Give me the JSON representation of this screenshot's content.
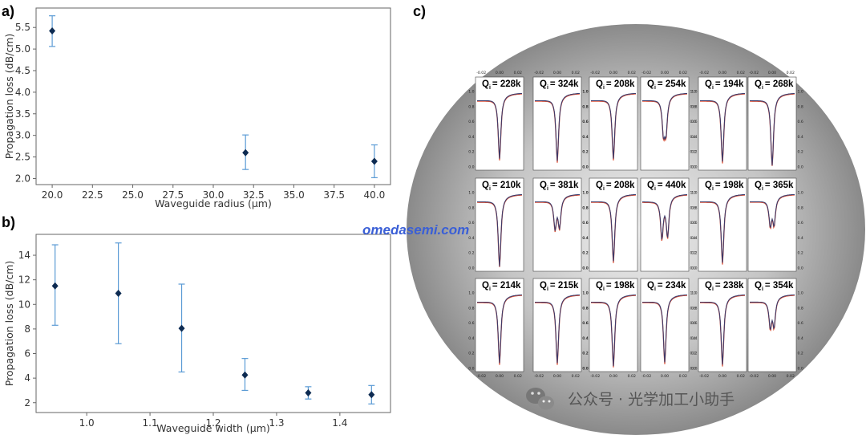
{
  "panels": {
    "a": "a)",
    "b": "b)",
    "c": "c)"
  },
  "chart_data": [
    {
      "type": "scatter",
      "panel": "a)",
      "xlabel": "Waveguide radius (μm)",
      "ylabel": "Propagation loss (dB/cm)",
      "xlim": [
        19.0,
        41.0
      ],
      "ylim": [
        1.86,
        5.95
      ],
      "xticks": [
        "20.0",
        "22.5",
        "25.0",
        "27.5",
        "30.0",
        "32.5",
        "35.0",
        "37.5",
        "40.0"
      ],
      "yticks": [
        "2.0",
        "2.5",
        "3.0",
        "3.5",
        "4.0",
        "4.5",
        "5.0",
        "5.5"
      ],
      "points": [
        {
          "x": 20,
          "y": 5.42,
          "err_low": 5.06,
          "err_high": 5.77
        },
        {
          "x": 32,
          "y": 2.6,
          "err_low": 2.21,
          "err_high": 3.01
        },
        {
          "x": 40,
          "y": 2.4,
          "err_low": 2.02,
          "err_high": 2.78
        }
      ],
      "marker_color": "#0d2b52",
      "errorbar_color": "#5b9bd5"
    },
    {
      "type": "scatter",
      "panel": "b)",
      "xlabel": "Waveguide width (μm)",
      "ylabel": "Propagation loss (dB/cm)",
      "xlim": [
        0.92,
        1.48
      ],
      "ylim": [
        1.2,
        15.7
      ],
      "xticks": [
        "1.0",
        "1.1",
        "1.2",
        "1.3",
        "1.4"
      ],
      "yticks": [
        "2",
        "4",
        "6",
        "8",
        "10",
        "12",
        "14"
      ],
      "points": [
        {
          "x": 0.95,
          "y": 11.5,
          "err_low": 8.3,
          "err_high": 14.85
        },
        {
          "x": 1.05,
          "y": 10.9,
          "err_low": 6.8,
          "err_high": 15.0
        },
        {
          "x": 1.15,
          "y": 8.05,
          "err_low": 4.5,
          "err_high": 11.65
        },
        {
          "x": 1.25,
          "y": 4.25,
          "err_low": 3.0,
          "err_high": 5.6
        },
        {
          "x": 1.35,
          "y": 2.8,
          "err_low": 2.3,
          "err_high": 3.3
        },
        {
          "x": 1.45,
          "y": 2.65,
          "err_low": 1.9,
          "err_high": 3.4
        }
      ],
      "marker_color": "#0d2b52",
      "errorbar_color": "#5b9bd5"
    },
    {
      "type": "line",
      "panel": "c)",
      "subplot_x_ticks": [
        "-0.02",
        "0.00",
        "0.02"
      ],
      "subplot_y_ticks": [
        "0.0",
        "0.2",
        "0.4",
        "0.6",
        "0.8",
        "1.0"
      ],
      "resonances": [
        {
          "label": "Q",
          "sub": "i",
          "value": "= 228k",
          "depth": 0.82,
          "split": 0
        },
        {
          "label": "Q",
          "sub": "i",
          "value": "= 324k",
          "depth": 0.85,
          "split": 0
        },
        {
          "label": "Q",
          "sub": "i",
          "value": "= 208k",
          "depth": 0.82,
          "split": 0
        },
        {
          "label": "Q",
          "sub": "i",
          "value": "= 254k",
          "depth": 0.7,
          "split": 0.2
        },
        {
          "label": "Q",
          "sub": "i",
          "value": "= 194k",
          "depth": 0.86,
          "split": 0
        },
        {
          "label": "Q",
          "sub": "i",
          "value": "= 268k",
          "depth": 0.92,
          "split": 0
        },
        {
          "label": "Q",
          "sub": "i",
          "value": "= 210k",
          "depth": 0.92,
          "split": 0
        },
        {
          "label": "Q",
          "sub": "i",
          "value": "= 381k",
          "depth": 0.62,
          "split": 0.35
        },
        {
          "label": "Q",
          "sub": "i",
          "value": "= 208k",
          "depth": 0.84,
          "split": 0
        },
        {
          "label": "Q",
          "sub": "i",
          "value": "= 440k",
          "depth": 0.82,
          "split": 0.45
        },
        {
          "label": "Q",
          "sub": "i",
          "value": "= 198k",
          "depth": 0.86,
          "split": 0
        },
        {
          "label": "Q",
          "sub": "i",
          "value": "= 365k",
          "depth": 0.55,
          "split": 0.3
        },
        {
          "label": "Q",
          "sub": "i",
          "value": "= 214k",
          "depth": 0.86,
          "split": 0
        },
        {
          "label": "Q",
          "sub": "i",
          "value": "= 215k",
          "depth": 0.86,
          "split": 0
        },
        {
          "label": "Q",
          "sub": "i",
          "value": "= 198k",
          "depth": 0.9,
          "split": 0
        },
        {
          "label": "Q",
          "sub": "i",
          "value": "= 234k",
          "depth": 0.85,
          "split": 0
        },
        {
          "label": "Q",
          "sub": "i",
          "value": "= 238k",
          "depth": 0.88,
          "split": 0
        },
        {
          "label": "Q",
          "sub": "i",
          "value": "= 354k",
          "depth": 0.58,
          "split": 0.3
        }
      ],
      "measured_color": "#3b3b6b",
      "fit_color": "#e0553a"
    }
  ],
  "watermark": {
    "site": "omedasemi.com",
    "wechat": "公众号 · 光学加工小助手"
  },
  "colors": {
    "wafer_center": "#e9e9e9",
    "wafer_edge": "#8a8a8a"
  }
}
